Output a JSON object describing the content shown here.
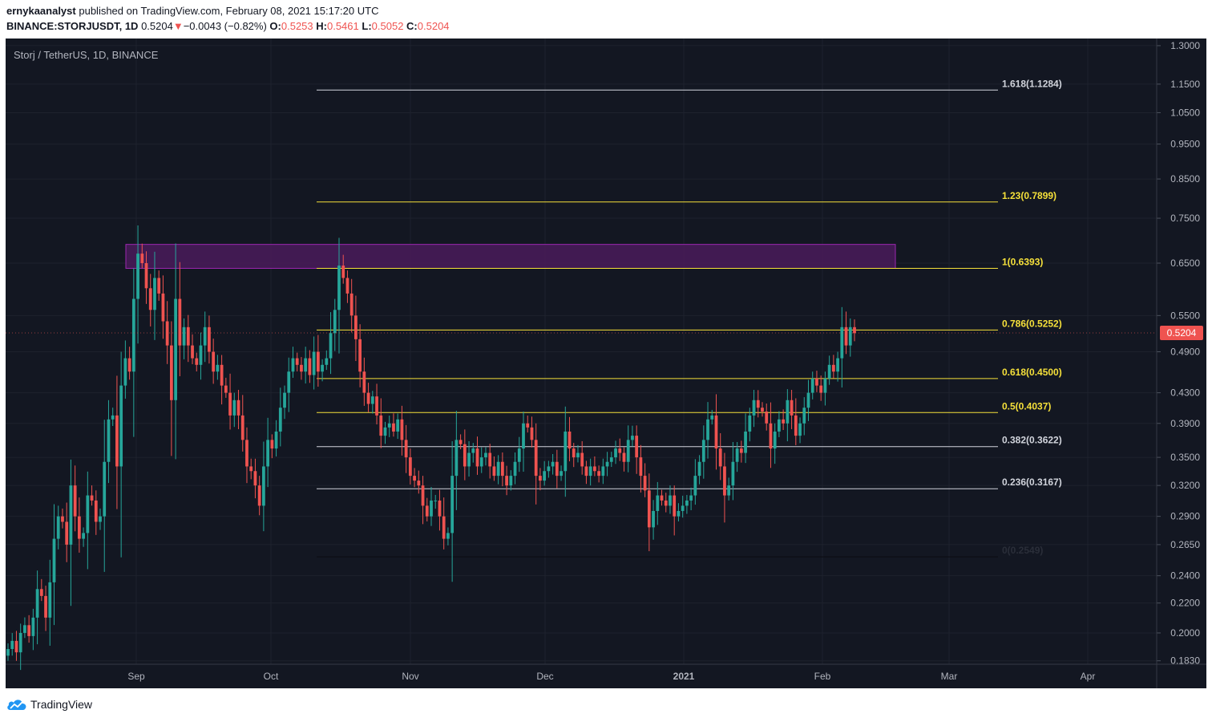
{
  "header": {
    "author": "ernykaanalyst",
    "published_text": "published on TradingView.com, February 08, 2021 15:17:20 UTC",
    "symbol_interval": "BINANCE:STORJUSDT, 1D",
    "last": "0.5204",
    "change": "−0.0043 (−0.82%)",
    "o_label": "O:",
    "o_val": "0.5253",
    "h_label": "H:",
    "h_val": "0.5461",
    "l_label": "L:",
    "l_val": "0.5052",
    "c_label": "C:",
    "c_val": "0.5204"
  },
  "chart_title": "Storj / TetherUS, 1D, BINANCE",
  "footer": {
    "brand": "TradingView"
  },
  "colors": {
    "background": "#131722",
    "grid": "#1e222d",
    "up": "#26a69a",
    "down": "#ef5350",
    "fib_yellow": "#f5e03a",
    "fib_white": "#d1d4dc",
    "zone_fill": "#4a1b5a",
    "zone_border": "#9c27b0"
  },
  "chart_data": {
    "type": "candlestick",
    "y_scale": "log",
    "ylim": [
      0.181,
      1.33
    ],
    "y_ticks": [
      0.183,
      0.2,
      0.22,
      0.24,
      0.265,
      0.29,
      0.32,
      0.35,
      0.39,
      0.43,
      0.49,
      0.55,
      0.65,
      0.75,
      0.85,
      0.95,
      1.05,
      1.15,
      1.3
    ],
    "y_tick_labels": [
      "0.1830",
      "0.2000",
      "0.2200",
      "0.2400",
      "0.2650",
      "0.2900",
      "0.3200",
      "0.3500",
      "0.3900",
      "0.4300",
      "0.4900",
      "0.5500",
      "0.6500",
      "0.7500",
      "0.8500",
      "0.9500",
      "1.0500",
      "1.1500",
      "1.3000"
    ],
    "x_ticks": [
      "Sep",
      "Oct",
      "Nov",
      "Dec",
      "2021",
      "Feb",
      "Mar",
      "Apr"
    ],
    "current_price": "0.5204",
    "fib_levels": [
      {
        "ratio": 1.618,
        "price": 1.1284,
        "label": "1.618(1.1284)",
        "color": "white"
      },
      {
        "ratio": 1.23,
        "price": 0.7899,
        "label": "1.23(0.7899)",
        "color": "yellow"
      },
      {
        "ratio": 1,
        "price": 0.6393,
        "label": "1(0.6393)",
        "color": "yellow"
      },
      {
        "ratio": 0.786,
        "price": 0.5252,
        "label": "0.786(0.5252)",
        "color": "yellow"
      },
      {
        "ratio": 0.618,
        "price": 0.45,
        "label": "0.618(0.4500)",
        "color": "yellow"
      },
      {
        "ratio": 0.5,
        "price": 0.4037,
        "label": "0.5(0.4037)",
        "color": "yellow"
      },
      {
        "ratio": 0.382,
        "price": 0.3622,
        "label": "0.382(0.3622)",
        "color": "white"
      },
      {
        "ratio": 0.236,
        "price": 0.3167,
        "label": "0.236(0.3167)",
        "color": "white"
      },
      {
        "ratio": 0,
        "price": 0.2549,
        "label": "0(0.2549)",
        "color": "dark"
      }
    ],
    "zone": {
      "price_low": 0.6393,
      "price_high": 0.69
    },
    "closes": [
      0.19,
      0.195,
      0.188,
      0.2,
      0.205,
      0.198,
      0.21,
      0.23,
      0.225,
      0.21,
      0.235,
      0.27,
      0.29,
      0.285,
      0.265,
      0.32,
      0.29,
      0.27,
      0.275,
      0.31,
      0.305,
      0.285,
      0.29,
      0.345,
      0.395,
      0.4,
      0.34,
      0.44,
      0.48,
      0.46,
      0.58,
      0.67,
      0.65,
      0.6,
      0.56,
      0.62,
      0.59,
      0.54,
      0.5,
      0.42,
      0.58,
      0.5,
      0.53,
      0.5,
      0.48,
      0.47,
      0.5,
      0.53,
      0.49,
      0.46,
      0.47,
      0.44,
      0.43,
      0.4,
      0.42,
      0.4,
      0.37,
      0.34,
      0.335,
      0.32,
      0.3,
      0.34,
      0.37,
      0.36,
      0.38,
      0.41,
      0.43,
      0.46,
      0.48,
      0.47,
      0.46,
      0.48,
      0.455,
      0.49,
      0.46,
      0.47,
      0.48,
      0.52,
      0.56,
      0.645,
      0.62,
      0.59,
      0.55,
      0.51,
      0.46,
      0.43,
      0.415,
      0.425,
      0.4,
      0.375,
      0.385,
      0.39,
      0.38,
      0.395,
      0.37,
      0.35,
      0.33,
      0.325,
      0.32,
      0.3,
      0.29,
      0.305,
      0.305,
      0.29,
      0.27,
      0.275,
      0.33,
      0.37,
      0.365,
      0.34,
      0.355,
      0.36,
      0.34,
      0.35,
      0.355,
      0.34,
      0.33,
      0.345,
      0.33,
      0.32,
      0.33,
      0.345,
      0.36,
      0.39,
      0.385,
      0.37,
      0.33,
      0.325,
      0.335,
      0.34,
      0.345,
      0.33,
      0.335,
      0.38,
      0.36,
      0.35,
      0.355,
      0.34,
      0.33,
      0.34,
      0.335,
      0.33,
      0.34,
      0.345,
      0.35,
      0.36,
      0.355,
      0.345,
      0.37,
      0.375,
      0.35,
      0.33,
      0.315,
      0.28,
      0.295,
      0.31,
      0.305,
      0.3,
      0.31,
      0.29,
      0.295,
      0.3,
      0.305,
      0.31,
      0.33,
      0.345,
      0.37,
      0.395,
      0.4,
      0.36,
      0.34,
      0.31,
      0.32,
      0.345,
      0.36,
      0.355,
      0.38,
      0.4,
      0.42,
      0.41,
      0.405,
      0.39,
      0.36,
      0.38,
      0.395,
      0.39,
      0.42,
      0.4,
      0.375,
      0.39,
      0.41,
      0.43,
      0.45,
      0.44,
      0.43,
      0.45,
      0.47,
      0.46,
      0.48,
      0.53,
      0.5,
      0.53,
      0.52
    ]
  }
}
